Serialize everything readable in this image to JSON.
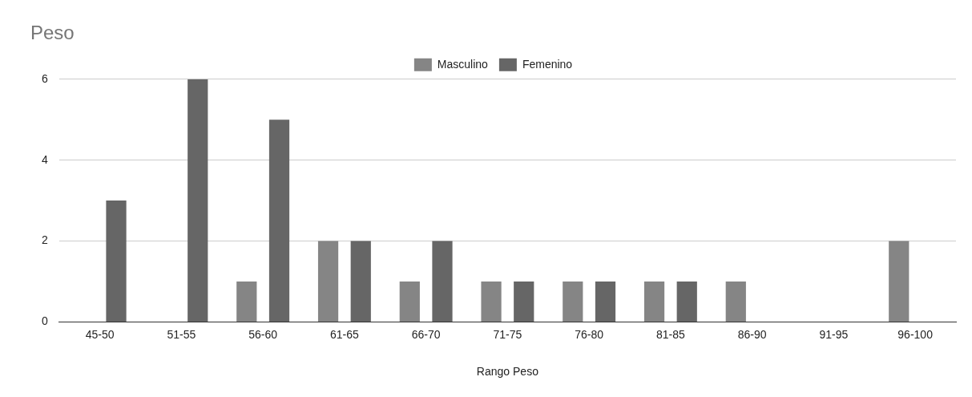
{
  "chart_data": {
    "type": "bar",
    "title": "Peso",
    "xlabel": "Rango Peso",
    "categories": [
      "45-50",
      "51-55",
      "56-60",
      "61-65",
      "66-70",
      "71-75",
      "76-80",
      "81-85",
      "86-90",
      "91-95",
      "96-100"
    ],
    "series": [
      {
        "name": "Masculino",
        "color": "#858585",
        "values": [
          0,
          0,
          1,
          2,
          1,
          1,
          1,
          1,
          1,
          0,
          2
        ]
      },
      {
        "name": "Femenino",
        "color": "#666666",
        "values": [
          3,
          6,
          5,
          2,
          2,
          1,
          1,
          1,
          0,
          0,
          0
        ]
      }
    ],
    "ylim": [
      0,
      6
    ],
    "yticks": [
      0,
      2,
      4,
      6
    ],
    "grid": "y",
    "legend": "top"
  }
}
